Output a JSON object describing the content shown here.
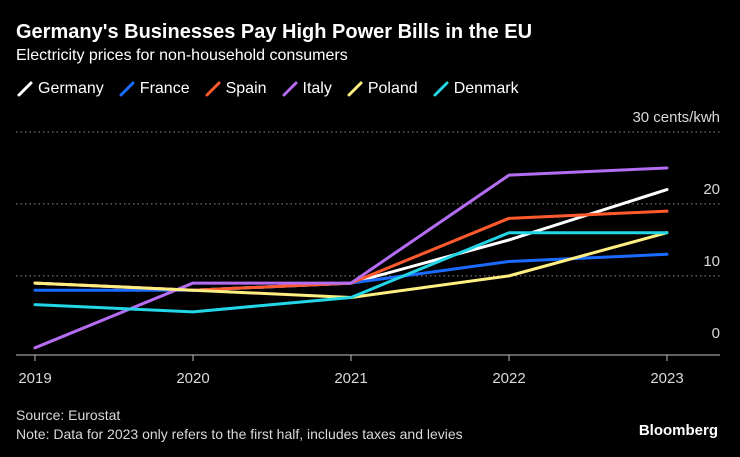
{
  "chart_data": {
    "type": "line",
    "title": "Germany's Businesses Pay High Power Bills in the EU",
    "subtitle": "Electricity prices for non-household consumers",
    "x": [
      "2019",
      "2020",
      "2021",
      "2022",
      "2023"
    ],
    "ylabel": "30 cents/kwh",
    "ylim": [
      -1,
      30
    ],
    "yticks": [
      {
        "value": 0,
        "label": "0"
      },
      {
        "value": 10,
        "label": "10"
      },
      {
        "value": 20,
        "label": "20"
      },
      {
        "value": 30,
        "label": "30 cents/kwh"
      }
    ],
    "grid": true,
    "series": [
      {
        "name": "Germany",
        "color": "#ffffff",
        "values": [
          9,
          8,
          9,
          15,
          22
        ]
      },
      {
        "name": "France",
        "color": "#1a6bff",
        "values": [
          8,
          8,
          9,
          12,
          13
        ]
      },
      {
        "name": "Spain",
        "color": "#ff5a2d",
        "values": [
          9,
          8,
          9,
          18,
          19
        ]
      },
      {
        "name": "Italy",
        "color": "#b46cf0",
        "values": [
          0,
          9,
          9,
          24,
          25
        ]
      },
      {
        "name": "Poland",
        "color": "#ffee80",
        "values": [
          9,
          8,
          7,
          10,
          16
        ]
      },
      {
        "name": "Denmark",
        "color": "#22d6e8",
        "values": [
          6,
          5,
          7,
          16,
          16
        ]
      }
    ]
  },
  "footer": {
    "source": "Source: Eurostat",
    "note": "Note: Data for 2023 only refers to the first half, includes taxes and levies",
    "brand": "Bloomberg"
  }
}
